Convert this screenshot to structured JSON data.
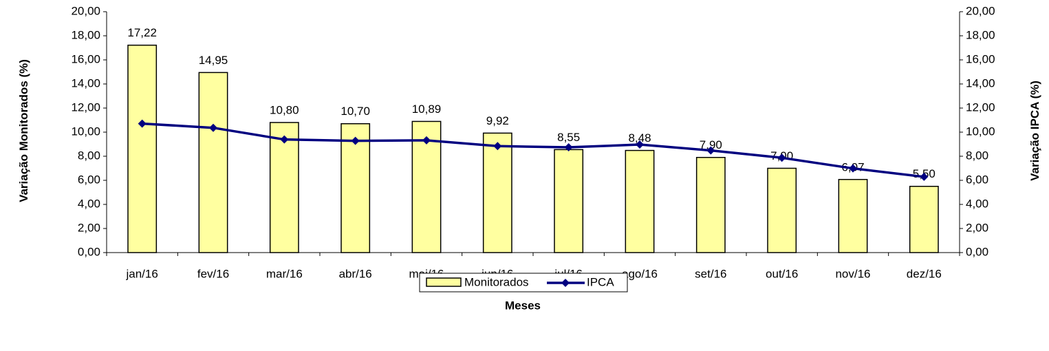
{
  "chart_data": {
    "type": "bar",
    "xlabel": "Meses",
    "ylabel": "Variação Monitorados (%)",
    "y2label": "Variação IPCA (%)",
    "categories": [
      "jan/16",
      "fev/16",
      "mar/16",
      "abr/16",
      "mai/16",
      "jun/16",
      "jul/16",
      "ago/16",
      "set/16",
      "out/16",
      "nov/16",
      "dez/16"
    ],
    "series": [
      {
        "name": "Monitorados",
        "type": "bar",
        "color": "#ffffa0",
        "values": [
          17.22,
          14.95,
          10.8,
          10.7,
          10.89,
          9.92,
          8.55,
          8.48,
          7.9,
          7.0,
          6.07,
          5.5
        ],
        "value_labels": [
          "17,22",
          "14,95",
          "10,80",
          "10,70",
          "10,89",
          "9,92",
          "8,55",
          "8,48",
          "7,90",
          "7,00",
          "6,07",
          "5,50"
        ]
      },
      {
        "name": "IPCA",
        "type": "line",
        "color": "#000080",
        "axis": "y2",
        "values": [
          10.71,
          10.36,
          9.39,
          9.28,
          9.32,
          8.84,
          8.74,
          8.97,
          8.48,
          7.87,
          6.99,
          6.29
        ]
      }
    ],
    "ylim": [
      0,
      20
    ],
    "yticks": [
      {
        "value": 0,
        "label": "0,00"
      },
      {
        "value": 2,
        "label": "2,00"
      },
      {
        "value": 4,
        "label": "4,00"
      },
      {
        "value": 6,
        "label": "6,00"
      },
      {
        "value": 8,
        "label": "8,00"
      },
      {
        "value": 10,
        "label": "10,00"
      },
      {
        "value": 12,
        "label": "12,00"
      },
      {
        "value": 14,
        "label": "14,00"
      },
      {
        "value": 16,
        "label": "16,00"
      },
      {
        "value": 18,
        "label": "18,00"
      },
      {
        "value": 20,
        "label": "20,00"
      }
    ],
    "y2lim": [
      0,
      20
    ],
    "y2ticks": [
      {
        "value": 0,
        "label": "0,00"
      },
      {
        "value": 2,
        "label": "2,00"
      },
      {
        "value": 4,
        "label": "4,00"
      },
      {
        "value": 6,
        "label": "6,00"
      },
      {
        "value": 8,
        "label": "8,00"
      },
      {
        "value": 10,
        "label": "10,00"
      },
      {
        "value": 12,
        "label": "12,00"
      },
      {
        "value": 14,
        "label": "14,00"
      },
      {
        "value": 16,
        "label": "16,00"
      },
      {
        "value": 18,
        "label": "18,00"
      },
      {
        "value": 20,
        "label": "20,00"
      }
    ],
    "grid": false,
    "legend": "bottom"
  }
}
